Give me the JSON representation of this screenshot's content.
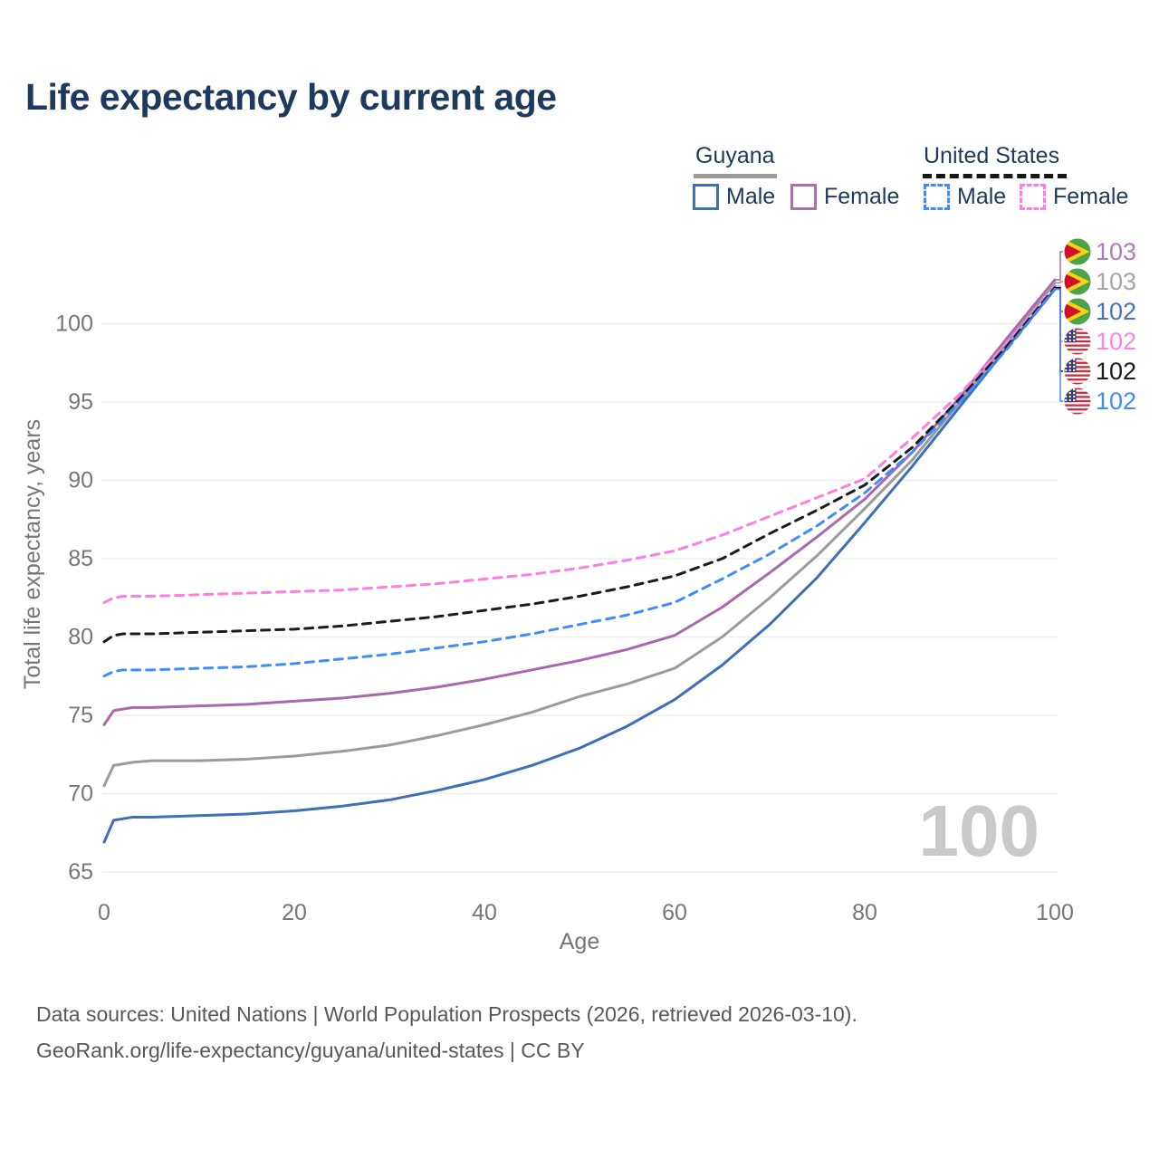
{
  "title": "Life expectancy by current age",
  "legend": {
    "groups": [
      {
        "label": "Guyana",
        "line_style": "solid",
        "underline_color": "#9a9a9a",
        "items": [
          {
            "label": "Male",
            "color": "#3e6fb8"
          },
          {
            "label": "Female",
            "color": "#a768ae"
          }
        ]
      },
      {
        "label": "United States",
        "line_style": "dashed",
        "underline_color": "#161616",
        "items": [
          {
            "label": "Male",
            "color": "#3f8cfa"
          },
          {
            "label": "Female",
            "color": "#ff7ce3"
          }
        ]
      }
    ]
  },
  "chart_data": {
    "type": "line",
    "title": "Life expectancy by current age",
    "xlabel": "Age",
    "ylabel": "Total life expectancy, years",
    "x_ticks": [
      0,
      20,
      40,
      60,
      80,
      100
    ],
    "y_ticks": [
      65,
      70,
      75,
      80,
      85,
      90,
      95,
      100
    ],
    "xlim": [
      0,
      100
    ],
    "ylim": [
      64.5,
      103.5
    ],
    "grid": "horizontal",
    "watermark": "100",
    "x": [
      0,
      1,
      2,
      3,
      5,
      10,
      15,
      20,
      25,
      30,
      35,
      40,
      45,
      50,
      55,
      60,
      65,
      70,
      75,
      80,
      85,
      90,
      95,
      100
    ],
    "series": [
      {
        "id": "guyana-female",
        "name": "Guyana Female",
        "country": "Guyana",
        "sex": "Female",
        "color": "#a768ae",
        "dash": "solid",
        "values": [
          74.4,
          75.3,
          75.4,
          75.5,
          75.5,
          75.6,
          75.7,
          75.9,
          76.1,
          76.4,
          76.8,
          77.3,
          77.9,
          78.5,
          79.2,
          80.1,
          81.9,
          84.1,
          86.4,
          88.8,
          91.8,
          95.3,
          99.1,
          102.8
        ],
        "end_label": {
          "text": "103",
          "text_color": "#b37abc",
          "flag": "guyana",
          "row": 0
        }
      },
      {
        "id": "guyana-both",
        "name": "Guyana (both sexes)",
        "country": "Guyana",
        "sex": "Both",
        "color": "#9b9b9b",
        "dash": "solid",
        "values": [
          70.5,
          71.8,
          71.9,
          72.0,
          72.1,
          72.1,
          72.2,
          72.4,
          72.7,
          73.1,
          73.7,
          74.4,
          75.2,
          76.2,
          77.0,
          78.0,
          80.0,
          82.5,
          85.2,
          88.2,
          91.3,
          95.0,
          98.8,
          102.6
        ],
        "end_label": {
          "text": "103",
          "text_color": "#a6a6a6",
          "flag": "guyana",
          "row": 1
        }
      },
      {
        "id": "guyana-male",
        "name": "Guyana Male",
        "country": "Guyana",
        "sex": "Male",
        "color": "#3e6fb8",
        "dash": "solid",
        "values": [
          66.9,
          68.3,
          68.4,
          68.5,
          68.5,
          68.6,
          68.7,
          68.9,
          69.2,
          69.6,
          70.2,
          70.9,
          71.8,
          72.9,
          74.3,
          76.0,
          78.2,
          80.8,
          83.8,
          87.3,
          90.9,
          94.7,
          98.5,
          102.2
        ],
        "end_label": {
          "text": "102",
          "text_color": "#4674c1",
          "flag": "guyana",
          "row": 2
        }
      },
      {
        "id": "us-female",
        "name": "United States Female",
        "country": "United States",
        "sex": "Female",
        "color": "#ff7ce3",
        "dash": "dashed",
        "values": [
          82.2,
          82.5,
          82.6,
          82.6,
          82.6,
          82.7,
          82.8,
          82.9,
          83.0,
          83.2,
          83.4,
          83.7,
          84.0,
          84.4,
          84.9,
          85.5,
          86.5,
          87.7,
          88.9,
          90.1,
          92.7,
          95.5,
          98.8,
          102.4
        ],
        "end_label": {
          "text": "102",
          "text_color": "#ff85e5",
          "flag": "us",
          "row": 3
        }
      },
      {
        "id": "us-both",
        "name": "United States (both sexes)",
        "country": "United States",
        "sex": "Both",
        "color": "#1b1b1b",
        "dash": "dashed",
        "values": [
          79.7,
          80.1,
          80.2,
          80.2,
          80.2,
          80.3,
          80.4,
          80.5,
          80.7,
          81.0,
          81.3,
          81.7,
          82.1,
          82.6,
          83.2,
          83.9,
          85.0,
          86.6,
          88.1,
          89.7,
          92.1,
          95.2,
          98.6,
          102.3
        ],
        "end_label": {
          "text": "102",
          "text_color": "#1b1b1b",
          "flag": "us",
          "row": 4
        }
      },
      {
        "id": "us-male",
        "name": "United States Male",
        "country": "United States",
        "sex": "Male",
        "color": "#3f8cfa",
        "dash": "dashed",
        "values": [
          77.5,
          77.8,
          77.9,
          77.9,
          77.9,
          78.0,
          78.1,
          78.3,
          78.6,
          78.9,
          79.3,
          79.7,
          80.2,
          80.8,
          81.4,
          82.2,
          83.7,
          85.3,
          87.1,
          89.2,
          91.8,
          95.0,
          98.4,
          102.2
        ],
        "end_label": {
          "text": "102",
          "text_color": "#3f8cfa",
          "flag": "us",
          "row": 5
        }
      }
    ]
  },
  "footer": {
    "line1": "Data sources: United Nations | World Population Prospects (2026, retrieved 2026-03-10).",
    "line2": "GeoRank.org/life-expectancy/guyana/united-states | CC BY"
  }
}
